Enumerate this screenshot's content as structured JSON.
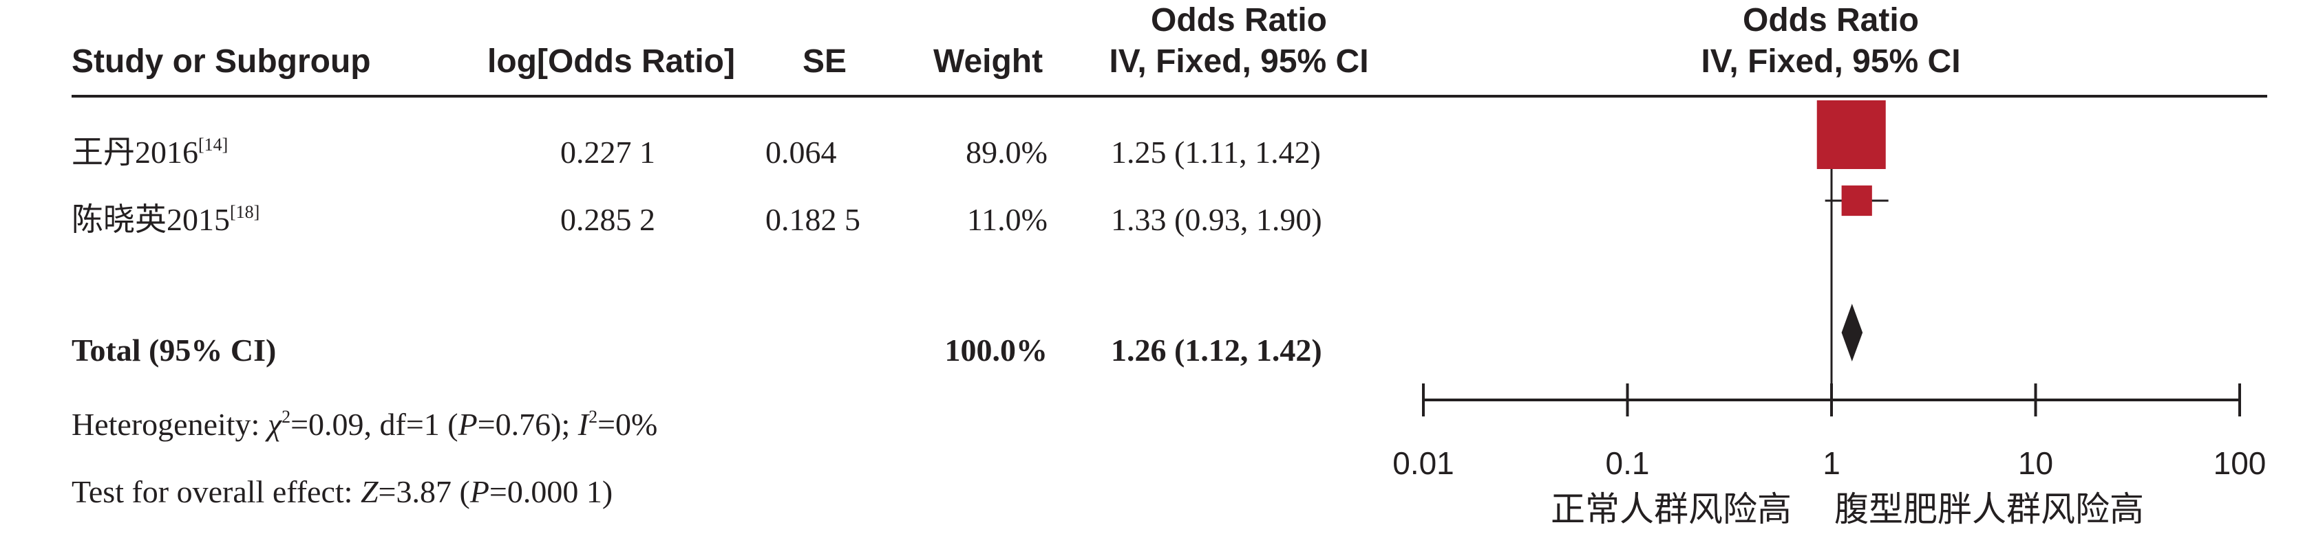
{
  "headers": {
    "study": "Study or Subgroup",
    "log_or": "log[Odds Ratio]",
    "se": "SE",
    "weight": "Weight",
    "or_col_line1": "Odds Ratio",
    "or_col_line2": "IV, Fixed, 95% CI",
    "plot_line1": "Odds Ratio",
    "plot_line2": "IV, Fixed, 95% CI"
  },
  "studies": [
    {
      "name": "王丹2016",
      "ref": "[14]",
      "log_or": "0.227 1",
      "se": "0.064",
      "weight": "89.0%",
      "ci_text": "1.25 (1.11, 1.42)"
    },
    {
      "name": "陈晓英2015",
      "ref": "[18]",
      "log_or": "0.285 2",
      "se": "0.182 5",
      "weight": "11.0%",
      "ci_text": "1.33 (0.93, 1.90)"
    }
  ],
  "total": {
    "label": "Total (95% CI)",
    "weight": "100.0%",
    "ci_text": "1.26 (1.12, 1.42)"
  },
  "footer": {
    "heterogeneity_prefix": "Heterogeneity: ",
    "chi": "χ",
    "chi_sup": "2",
    "chi_value": "=0.09, df=1 (",
    "p_label": "P",
    "p_value": "=0.76); ",
    "i_label": "I",
    "i_sup": "2",
    "i_value": "=0%",
    "overall_prefix": "Test for overall effect: ",
    "z_label": "Z",
    "z_value": "=3.87 (",
    "p2_label": "P",
    "p2_value": "=0.000 1)"
  },
  "chart_data": {
    "type": "forest",
    "scale": "log",
    "xlim": [
      0.01,
      100
    ],
    "ticks": [
      0.01,
      0.1,
      1,
      10,
      100
    ],
    "tick_labels": [
      "0.01",
      "0.1",
      "1",
      "10",
      "100"
    ],
    "null_value": 1,
    "favours_left": "正常人群风险高",
    "favours_right": "腹型肥胖人群风险高",
    "studies": [
      {
        "or": 1.25,
        "lower": 1.11,
        "upper": 1.42,
        "weight": 89.0
      },
      {
        "or": 1.33,
        "lower": 0.93,
        "upper": 1.9,
        "weight": 11.0
      }
    ],
    "total": {
      "or": 1.26,
      "lower": 1.12,
      "upper": 1.42
    },
    "colors": {
      "square": "#b7202e",
      "ink": "#231f20"
    }
  }
}
